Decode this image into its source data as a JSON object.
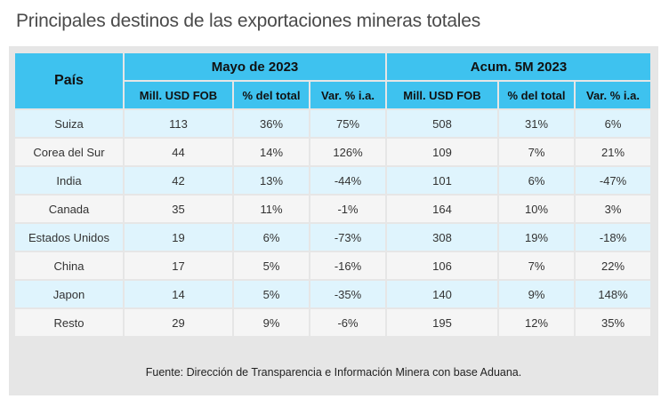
{
  "title": "Principales destinos de las exportaciones mineras totales",
  "table": {
    "country_header": "País",
    "group_headers": [
      "Mayo de 2023",
      "Acum. 5M 2023"
    ],
    "sub_headers": [
      "Mill. USD FOB",
      "% del total",
      "Var. % i.a.",
      "Mill. USD FOB",
      "% del total",
      "Var. % i.a."
    ],
    "rows": [
      [
        "Suiza",
        "113",
        "36%",
        "75%",
        "508",
        "31%",
        "6%"
      ],
      [
        "Corea del Sur",
        "44",
        "14%",
        "126%",
        "109",
        "7%",
        "21%"
      ],
      [
        "India",
        "42",
        "13%",
        "-44%",
        "101",
        "6%",
        "-47%"
      ],
      [
        "Canada",
        "35",
        "11%",
        "-1%",
        "164",
        "10%",
        "3%"
      ],
      [
        "Estados Unidos",
        "19",
        "6%",
        "-73%",
        "308",
        "19%",
        "-18%"
      ],
      [
        "China",
        "17",
        "5%",
        "-16%",
        "106",
        "7%",
        "22%"
      ],
      [
        "Japon",
        "14",
        "5%",
        "-35%",
        "140",
        "9%",
        "148%"
      ],
      [
        "Resto",
        "29",
        "9%",
        "-6%",
        "195",
        "12%",
        "35%"
      ]
    ]
  },
  "source": "Fuente: Dirección de Transparencia e Información Minera con base Aduana.",
  "colors": {
    "header": "#3ec2ef",
    "row_light_blue": "#dff4fd",
    "row_light_gray": "#f5f5f5",
    "panel": "#e6e6e6"
  }
}
